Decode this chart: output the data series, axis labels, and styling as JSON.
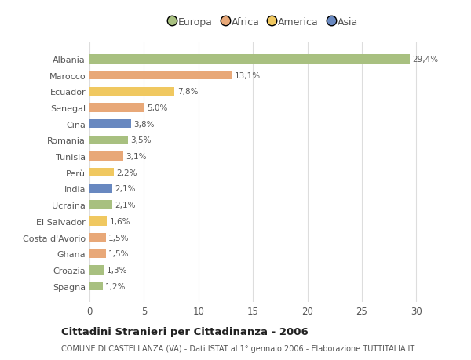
{
  "categories": [
    "Albania",
    "Marocco",
    "Ecuador",
    "Senegal",
    "Cina",
    "Romania",
    "Tunisia",
    "Perù",
    "India",
    "Ucraina",
    "El Salvador",
    "Costa d'Avorio",
    "Ghana",
    "Croazia",
    "Spagna"
  ],
  "values": [
    29.4,
    13.1,
    7.8,
    5.0,
    3.8,
    3.5,
    3.1,
    2.2,
    2.1,
    2.1,
    1.6,
    1.5,
    1.5,
    1.3,
    1.2
  ],
  "labels": [
    "29,4%",
    "13,1%",
    "7,8%",
    "5,0%",
    "3,8%",
    "3,5%",
    "3,1%",
    "2,2%",
    "2,1%",
    "2,1%",
    "1,6%",
    "1,5%",
    "1,5%",
    "1,3%",
    "1,2%"
  ],
  "colors": [
    "#a8c080",
    "#e8a878",
    "#f0c860",
    "#e8a878",
    "#6888c0",
    "#a8c080",
    "#e8a878",
    "#f0c860",
    "#6888c0",
    "#a8c080",
    "#f0c860",
    "#e8a878",
    "#e8a878",
    "#a8c080",
    "#a8c080"
  ],
  "legend_labels": [
    "Europa",
    "Africa",
    "America",
    "Asia"
  ],
  "legend_colors": [
    "#a8c080",
    "#e8a878",
    "#f0c860",
    "#6888c0"
  ],
  "title": "Cittadini Stranieri per Cittadinanza - 2006",
  "subtitle": "COMUNE DI CASTELLANZA (VA) - Dati ISTAT al 1° gennaio 2006 - Elaborazione TUTTITALIA.IT",
  "xlim": [
    0,
    32
  ],
  "xticks": [
    0,
    5,
    10,
    15,
    20,
    25,
    30
  ],
  "bg_color": "#ffffff",
  "plot_bg_color": "#ffffff",
  "grid_color": "#dddddd",
  "bar_height": 0.55,
  "label_fontsize": 7.5,
  "ytick_fontsize": 8.0,
  "xtick_fontsize": 8.5
}
